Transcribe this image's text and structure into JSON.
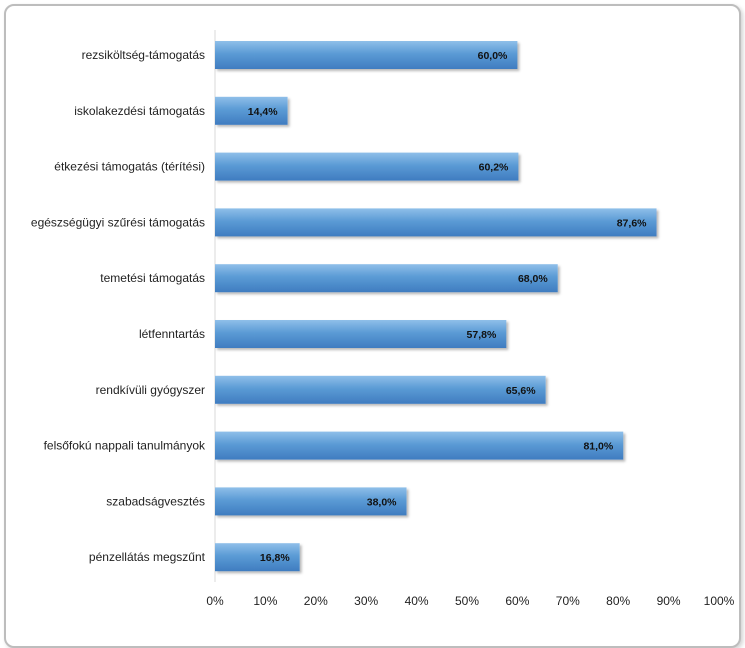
{
  "chart_data": {
    "type": "bar",
    "orientation": "horizontal",
    "categories": [
      "rezsiköltség-támogatás",
      "iskolakezdési támogatás",
      "étkezési támogatás (térítési)",
      "egészségügyi szűrési támogatás",
      "temetési támogatás",
      "létfenntartás",
      "rendkívüli gyógyszer",
      "felsőfokú nappali tanulmányok",
      "szabadságvesztés",
      "pénzellátás megszűnt"
    ],
    "values": [
      60.0,
      14.4,
      60.2,
      87.6,
      68.0,
      57.8,
      65.6,
      81.0,
      38.0,
      16.8
    ],
    "value_labels": [
      "60,0%",
      "14,4%",
      "60,2%",
      "87,6%",
      "68,0%",
      "57,8%",
      "65,6%",
      "81,0%",
      "38,0%",
      "16,8%"
    ],
    "x_ticks": [
      "0%",
      "10%",
      "20%",
      "30%",
      "40%",
      "50%",
      "60%",
      "70%",
      "80%",
      "90%",
      "100%"
    ],
    "xlim": [
      0,
      100
    ],
    "grid": false,
    "legend": "none",
    "bar_color": "#5b9bd5"
  }
}
